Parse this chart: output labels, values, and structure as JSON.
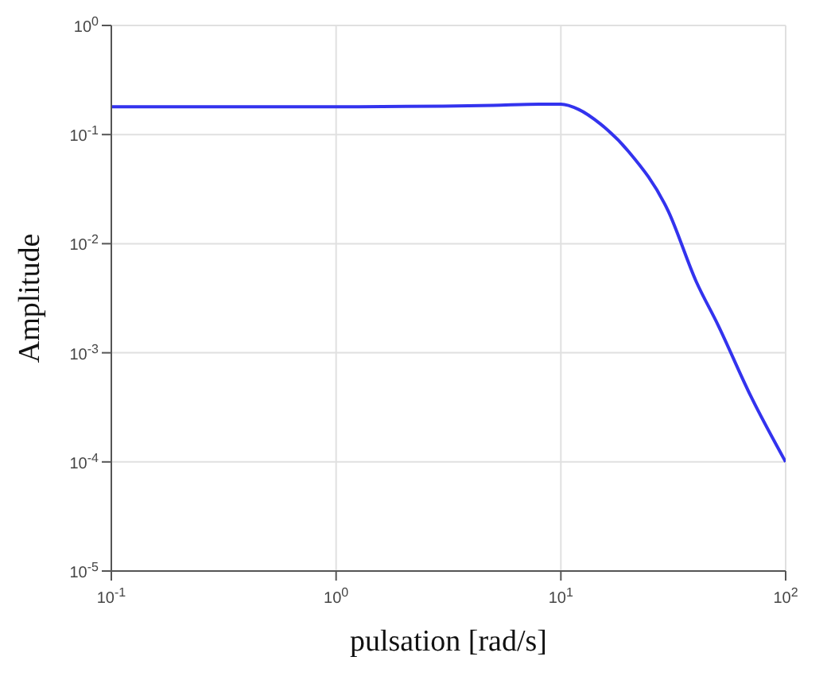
{
  "chart_data": {
    "type": "line",
    "xlabel": "pulsation [rad/s]",
    "ylabel": "Amplitude",
    "log": "xy",
    "x": [
      0.1,
      1,
      3,
      5,
      8,
      10,
      12,
      15,
      20,
      30,
      40,
      50,
      70,
      100
    ],
    "series": [
      {
        "color": "#3333ee",
        "values": [
          0.18,
          0.18,
          0.182,
          0.185,
          0.19,
          0.19,
          0.17,
          0.125,
          0.07,
          0.02,
          0.0045,
          0.0018,
          0.0004,
          0.0001
        ]
      }
    ],
    "xlim": [
      0.1,
      100
    ],
    "ylim": [
      1e-05,
      1
    ],
    "xticks": [
      {
        "value": 0.1,
        "label": "10$^{-1}$"
      },
      {
        "value": 1,
        "label": "10$^{0}$"
      },
      {
        "value": 10,
        "label": "10$^{1}$"
      },
      {
        "value": 100,
        "label": "10$^{2}$"
      }
    ],
    "yticks": [
      {
        "value": 1e-05,
        "label": "10$^{-5}$"
      },
      {
        "value": 0.0001,
        "label": "10$^{-4}$"
      },
      {
        "value": 0.001,
        "label": "10$^{-3}$"
      },
      {
        "value": 0.01,
        "label": "10$^{-2}$"
      },
      {
        "value": 0.1,
        "label": "10$^{-1}$"
      },
      {
        "value": 1,
        "label": "10$^{0}$"
      }
    ],
    "grid": true,
    "marker": "none",
    "line_style": "solid"
  }
}
